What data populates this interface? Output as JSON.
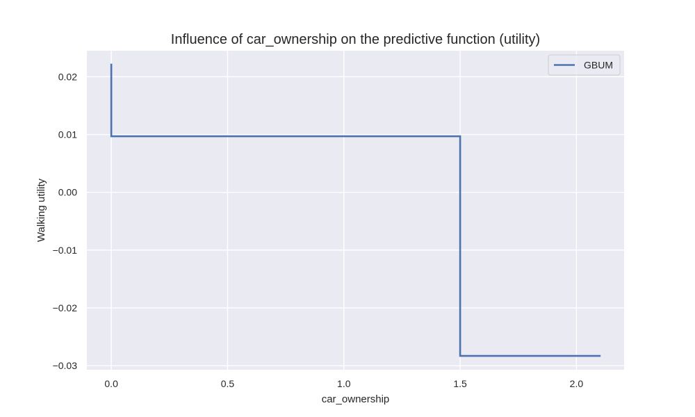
{
  "chart_data": {
    "type": "line",
    "title": "Influence of car_ownership on the predictive function (utility)",
    "xlabel": "car_ownership",
    "ylabel": "Walking utility",
    "xlim": [
      -0.105,
      2.205
    ],
    "ylim": [
      -0.0307,
      0.0245
    ],
    "xticks": [
      0.0,
      0.5,
      1.0,
      1.5,
      2.0
    ],
    "xtick_labels": [
      "0.0",
      "0.5",
      "1.0",
      "1.5",
      "2.0"
    ],
    "yticks": [
      0.02,
      0.01,
      0.0,
      -0.01,
      -0.02,
      -0.03
    ],
    "ytick_labels": [
      "0.02",
      "0.01",
      "0.00",
      "−0.01",
      "−0.02",
      "−0.03"
    ],
    "grid": true,
    "legend_position": "top-right",
    "series": [
      {
        "name": "GBUM",
        "color": "#4c72b0",
        "x": [
          0.0,
          0.0,
          1.5,
          1.5,
          2.1
        ],
        "y": [
          0.0221,
          0.0097,
          0.0097,
          -0.0283,
          -0.0283
        ]
      }
    ]
  },
  "colors": {
    "plot_background": "#eaeaf2",
    "grid": "#ffffff",
    "text": "#262626"
  }
}
